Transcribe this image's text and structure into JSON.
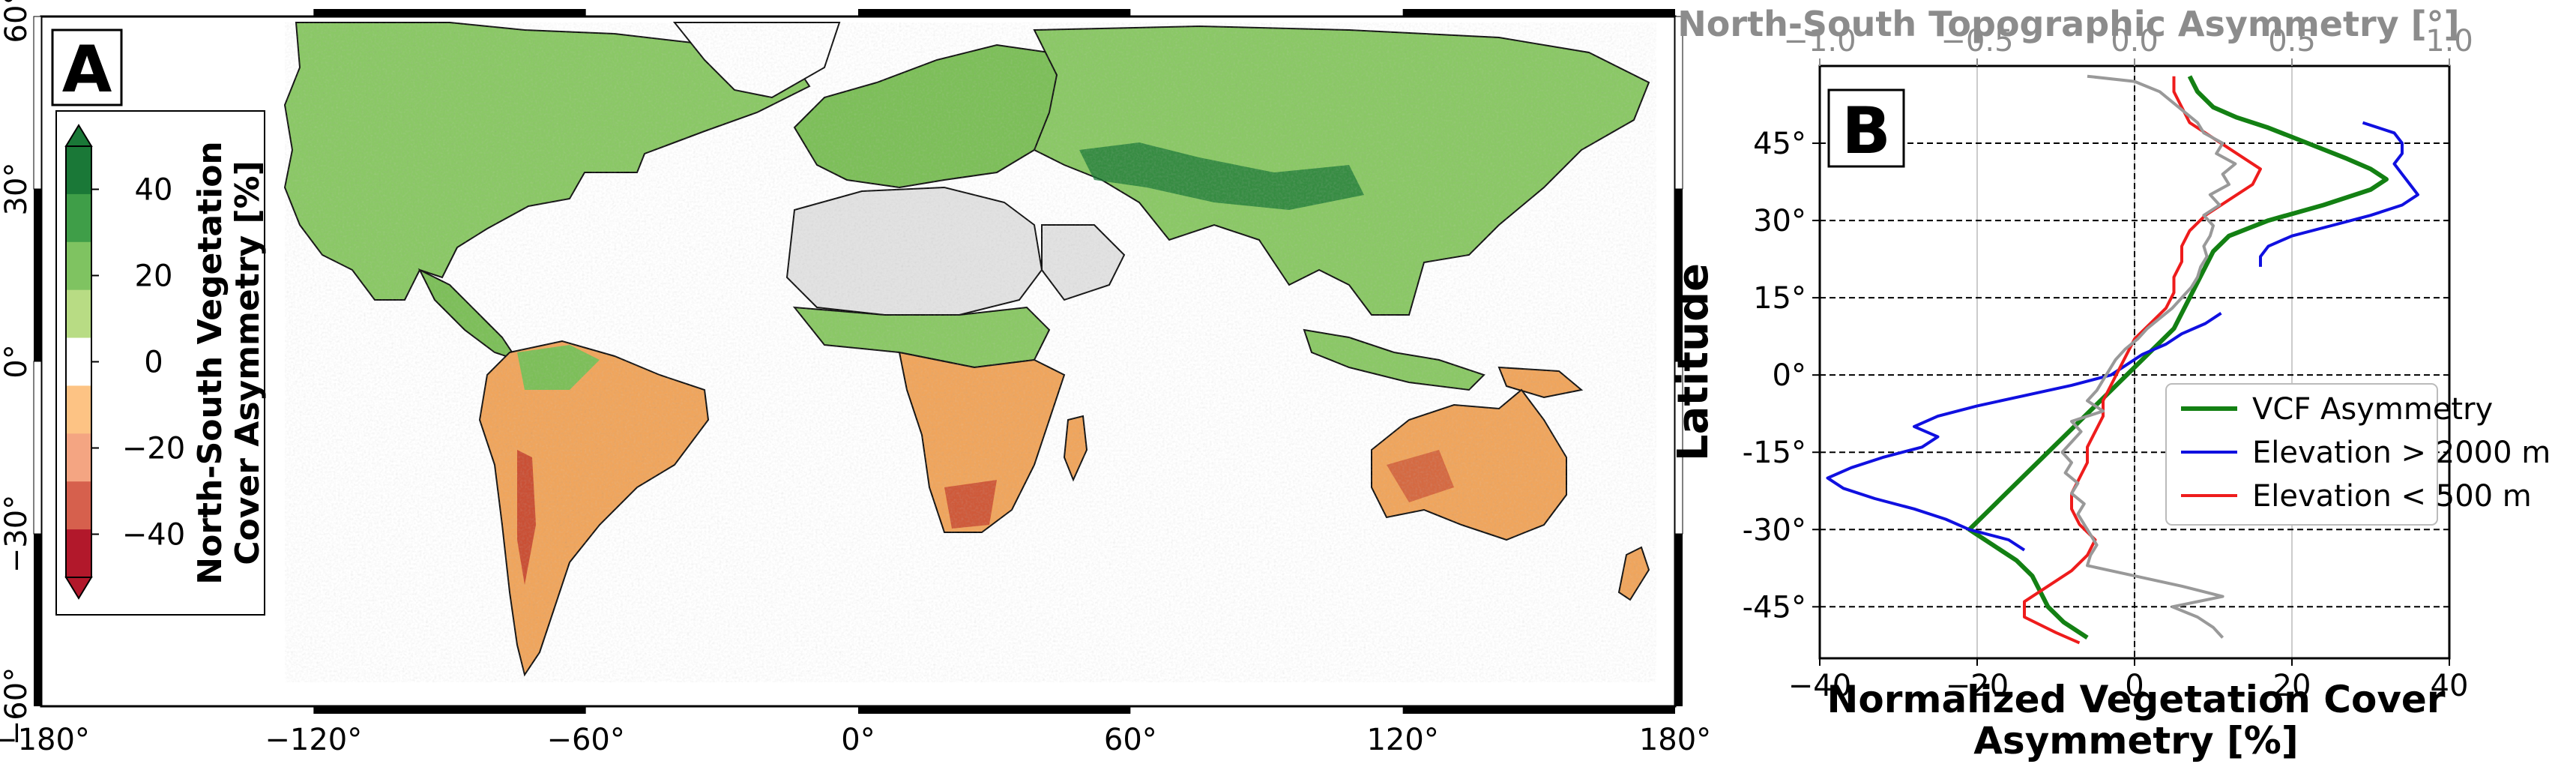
{
  "chart_data": [
    {
      "type": "heatmap",
      "panel_label": "A",
      "xticks": [
        "−180°",
        "−120°",
        "−60°",
        "0°",
        "60°",
        "120°",
        "180°"
      ],
      "xtick_values": [
        -180,
        -120,
        -60,
        0,
        60,
        120,
        180
      ],
      "yticks": [
        "60°",
        "30°",
        "0°",
        "−30°",
        "−60°"
      ],
      "ytick_values": [
        60,
        30,
        0,
        -30,
        -60
      ],
      "xlim": [
        -180,
        180
      ],
      "ylim": [
        -60,
        60
      ],
      "colorbar": {
        "label_line1": "North-South Vegetation",
        "label_line2": "Cover Asymmetry [%]",
        "ticks": [
          "40",
          "20",
          "0",
          "−20",
          "−40"
        ],
        "tick_values": [
          40,
          20,
          0,
          -20,
          -40
        ],
        "range": [
          -50,
          50
        ],
        "colors": [
          "#b2182b",
          "#d6604d",
          "#f4a582",
          "#fdc384",
          "#ffffff",
          "#b8dc84",
          "#7fc361",
          "#3f9e48",
          "#1a7837"
        ]
      },
      "colors": {
        "ocean": "#ffffff",
        "land_positive": "#7cbf58",
        "land_negative": "#f0a55c",
        "desert": "#dcdcdc",
        "border": "#111111"
      }
    },
    {
      "type": "line",
      "panel_label": "B",
      "xlabel_line1": "Normalized Vegetation Cover",
      "xlabel_line2": "Asymmetry [%]",
      "ylabel": "Latitude",
      "top_xlabel": "North-South Topographic Asymmetry [°]",
      "xlim": [
        -40,
        40
      ],
      "xticks": [
        "−40",
        "−20",
        "0",
        "20",
        "40"
      ],
      "xtick_values": [
        -40,
        -20,
        0,
        20,
        40
      ],
      "top_xlim": [
        -1.0,
        1.0
      ],
      "top_xticks": [
        "−1.0",
        "−0.5",
        "0.0",
        "0.5",
        "1.0"
      ],
      "top_xtick_values": [
        -1.0,
        -0.5,
        0.0,
        0.5,
        1.0
      ],
      "ylim": [
        -55,
        60
      ],
      "yticks": [
        "45°",
        "30°",
        "15°",
        "0°",
        "-15°",
        "-30°",
        "-45°"
      ],
      "ytick_values": [
        45,
        30,
        15,
        0,
        -15,
        -30,
        -45
      ],
      "grid": true,
      "legend_position": "center-right",
      "series": [
        {
          "name": "VCF Asymmetry",
          "color": "#138013",
          "y": [
            58,
            55,
            52,
            50,
            48,
            45,
            42,
            40,
            38,
            36,
            33,
            30,
            27,
            24,
            21,
            18,
            15,
            12,
            9,
            6,
            3,
            0,
            -3,
            -6,
            -9,
            -12,
            -15,
            -18,
            -21,
            -24,
            -27,
            -30,
            -33,
            -36,
            -39,
            -42,
            -45,
            -48,
            -51
          ],
          "x": [
            7,
            8,
            10,
            13,
            17,
            22,
            27,
            30,
            32,
            30,
            24,
            17,
            12,
            10,
            9,
            8,
            7,
            6,
            5,
            3,
            1,
            -1,
            -3,
            -5,
            -7,
            -9,
            -11,
            -13,
            -15,
            -17,
            -19,
            -21,
            -18,
            -15,
            -13,
            -12,
            -11,
            -9,
            -6
          ]
        },
        {
          "name": "Elevation > 2000 m",
          "color": "#1010e0",
          "y": [
            49,
            47,
            45,
            43,
            41,
            39,
            37,
            35,
            33,
            31,
            29,
            27,
            25,
            23,
            21
          ],
          "x": [
            29,
            33,
            34,
            34,
            33,
            34,
            35,
            36,
            34,
            30,
            25,
            20,
            17,
            16,
            16
          ]
        },
        {
          "name": "Elevation > 2000 m",
          "color": "#1010e0",
          "y": [
            12,
            10,
            8,
            6,
            4,
            2,
            0,
            -2,
            -4,
            -6,
            -8,
            -10,
            -12,
            -14,
            -16,
            -18,
            -20,
            -22,
            -24,
            -26,
            -28,
            -30,
            -32,
            -34
          ],
          "x": [
            11,
            9,
            6,
            4,
            1,
            -1,
            -3,
            -8,
            -14,
            -20,
            -25,
            -28,
            -25,
            -27,
            -32,
            -36,
            -39,
            -37,
            -33,
            -28,
            -24,
            -21,
            -16,
            -14
          ]
        },
        {
          "name": "Elevation < 500 m",
          "color": "#ee1c1c",
          "y": [
            58,
            55,
            52,
            49,
            46,
            43,
            40,
            37,
            34,
            31,
            28,
            25,
            22,
            19,
            16,
            13,
            10,
            7,
            4,
            1,
            -2,
            -5,
            -8,
            -11,
            -14,
            -17,
            -20,
            -23,
            -26,
            -29,
            -32,
            -35,
            -38,
            -41,
            -44,
            -47,
            -50,
            -52
          ],
          "x": [
            5,
            5,
            6,
            7,
            10,
            13,
            16,
            15,
            12,
            9,
            7,
            6,
            6,
            5,
            5,
            4,
            2,
            0,
            -1,
            -2,
            -3,
            -4,
            -4,
            -5,
            -6,
            -6,
            -7,
            -8,
            -8,
            -7,
            -5,
            -6,
            -8,
            -11,
            -14,
            -14,
            -10,
            -7
          ]
        },
        {
          "name": "North-South Topographic Asymmetry",
          "color": "#999999",
          "axis": "top",
          "y": [
            58,
            57,
            56,
            55,
            53,
            51,
            49,
            47,
            45,
            43,
            41,
            39,
            37,
            35,
            33,
            31,
            29,
            27,
            25,
            23,
            21,
            19,
            17,
            15,
            13,
            11,
            9,
            7,
            5,
            3,
            1,
            -1,
            -3,
            -5,
            -7,
            -9,
            -11,
            -13,
            -15,
            -17,
            -19,
            -21,
            -23,
            -25,
            -27,
            -29,
            -31,
            -33,
            -35,
            -37,
            -39,
            -41,
            -43,
            -45,
            -47,
            -49,
            -51
          ],
          "x": [
            -0.15,
            0.0,
            0.04,
            0.08,
            0.12,
            0.16,
            0.2,
            0.22,
            0.28,
            0.26,
            0.32,
            0.28,
            0.3,
            0.24,
            0.27,
            0.22,
            0.25,
            0.24,
            0.22,
            0.23,
            0.21,
            0.2,
            0.18,
            0.15,
            0.12,
            0.08,
            0.04,
            0.01,
            -0.03,
            -0.06,
            -0.08,
            -0.1,
            -0.12,
            -0.15,
            -0.1,
            -0.2,
            -0.17,
            -0.2,
            -0.23,
            -0.2,
            -0.22,
            -0.18,
            -0.2,
            -0.16,
            -0.18,
            -0.16,
            -0.14,
            -0.12,
            -0.14,
            -0.15,
            0.0,
            0.15,
            0.28,
            0.12,
            0.2,
            0.25,
            0.28
          ]
        }
      ]
    }
  ]
}
